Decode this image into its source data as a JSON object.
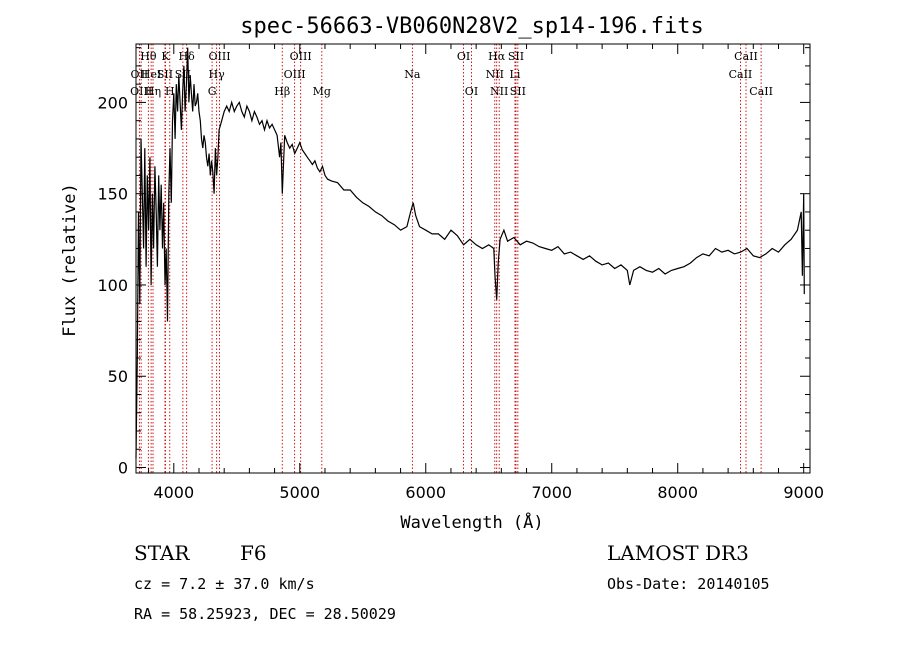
{
  "chart_data": {
    "type": "line",
    "title": "spec-56663-VB060N28V2_sp14-196.fits",
    "xlabel": "Wavelength (Å)",
    "ylabel": "Flux (relative)",
    "xlim": [
      3700,
      9050
    ],
    "ylim": [
      -3,
      232
    ],
    "xticks": [
      4000,
      5000,
      6000,
      7000,
      8000,
      9000
    ],
    "yticks": [
      0,
      50,
      100,
      150,
      200
    ],
    "grid": false,
    "line_color": "#000000",
    "marker_color": "#cc0000",
    "series": [
      {
        "x": [
          3700,
          3710,
          3720,
          3730,
          3740,
          3750,
          3760,
          3770,
          3780,
          3790,
          3800,
          3810,
          3820,
          3830,
          3840,
          3850,
          3860,
          3870,
          3880,
          3890,
          3900,
          3910,
          3920,
          3930,
          3940,
          3950,
          3960,
          3970,
          3980,
          3990,
          4000,
          4010,
          4020,
          4030,
          4040,
          4050,
          4060,
          4070,
          4080,
          4090,
          4100,
          4110,
          4120,
          4130,
          4140,
          4150,
          4160,
          4170,
          4180,
          4190,
          4200,
          4210,
          4220,
          4230,
          4240,
          4250,
          4260,
          4270,
          4280,
          4290,
          4300,
          4310,
          4320,
          4330,
          4340,
          4350,
          4360,
          4380,
          4400,
          4420,
          4440,
          4460,
          4480,
          4500,
          4520,
          4540,
          4560,
          4580,
          4600,
          4620,
          4640,
          4660,
          4680,
          4700,
          4720,
          4740,
          4760,
          4780,
          4800,
          4820,
          4840,
          4850,
          4861,
          4870,
          4880,
          4900,
          4920,
          4940,
          4960,
          4980,
          5000,
          5020,
          5040,
          5060,
          5080,
          5100,
          5120,
          5140,
          5160,
          5180,
          5200,
          5220,
          5250,
          5300,
          5350,
          5400,
          5450,
          5500,
          5550,
          5600,
          5650,
          5700,
          5750,
          5800,
          5850,
          5880,
          5900,
          5920,
          5950,
          6000,
          6050,
          6100,
          6150,
          6200,
          6250,
          6300,
          6350,
          6400,
          6450,
          6500,
          6540,
          6550,
          6563,
          6575,
          6590,
          6620,
          6650,
          6700,
          6750,
          6800,
          6850,
          6900,
          6950,
          7000,
          7050,
          7100,
          7150,
          7200,
          7250,
          7300,
          7350,
          7400,
          7450,
          7500,
          7550,
          7600,
          7620,
          7650,
          7700,
          7750,
          7800,
          7850,
          7900,
          7950,
          8000,
          8050,
          8100,
          8150,
          8200,
          8250,
          8300,
          8350,
          8400,
          8450,
          8500,
          8550,
          8600,
          8650,
          8700,
          8750,
          8800,
          8850,
          8900,
          8950,
          8980,
          8990,
          9000,
          9005
        ],
        "y": [
          5,
          60,
          140,
          90,
          180,
          150,
          120,
          175,
          110,
          160,
          130,
          170,
          100,
          150,
          120,
          165,
          140,
          110,
          160,
          130,
          155,
          120,
          145,
          100,
          120,
          80,
          150,
          175,
          145,
          190,
          205,
          180,
          210,
          195,
          215,
          200,
          185,
          205,
          220,
          195,
          210,
          230,
          200,
          215,
          205,
          195,
          210,
          198,
          200,
          205,
          195,
          190,
          180,
          175,
          182,
          178,
          170,
          165,
          172,
          160,
          168,
          162,
          150,
          175,
          160,
          170,
          185,
          190,
          195,
          198,
          195,
          200,
          195,
          198,
          200,
          195,
          192,
          198,
          195,
          190,
          195,
          192,
          188,
          190,
          185,
          190,
          186,
          188,
          185,
          182,
          170,
          178,
          150,
          165,
          182,
          178,
          175,
          177,
          172,
          175,
          178,
          174,
          172,
          170,
          168,
          166,
          168,
          164,
          162,
          165,
          160,
          158,
          157,
          156,
          152,
          152,
          148,
          145,
          143,
          140,
          138,
          135,
          133,
          130,
          132,
          140,
          145,
          138,
          132,
          130,
          128,
          128,
          125,
          130,
          127,
          122,
          125,
          122,
          120,
          122,
          120,
          105,
          92,
          112,
          125,
          130,
          124,
          126,
          122,
          124,
          123,
          121,
          120,
          119,
          121,
          117,
          118,
          116,
          114,
          116,
          113,
          111,
          112,
          109,
          111,
          108,
          100,
          108,
          110,
          108,
          107,
          109,
          106,
          108,
          109,
          110,
          112,
          115,
          117,
          116,
          120,
          118,
          119,
          117,
          118,
          120,
          116,
          115,
          117,
          120,
          118,
          122,
          125,
          130,
          140,
          105,
          150,
          95
        ]
      }
    ],
    "line_markers": [
      {
        "label": "Hθ",
        "x": 3798,
        "row": 0
      },
      {
        "label": "OII",
        "x": 3727,
        "row": 1
      },
      {
        "label": "OIII",
        "x": 3741,
        "row": 2
      },
      {
        "label": "HeI",
        "x": 3820,
        "row": 1
      },
      {
        "label": "Hη",
        "x": 3835,
        "row": 2
      },
      {
        "label": "K",
        "x": 3934,
        "row": 0
      },
      {
        "label": "SII",
        "x": 3930,
        "row": 1
      },
      {
        "label": "H",
        "x": 3968,
        "row": 2
      },
      {
        "label": "Hδ",
        "x": 4102,
        "row": 0
      },
      {
        "label": "SII",
        "x": 4072,
        "row": 1
      },
      {
        "label": "OIII",
        "x": 4363,
        "row": 0
      },
      {
        "label": "Hγ",
        "x": 4340,
        "row": 1
      },
      {
        "label": "G",
        "x": 4304,
        "row": 2
      },
      {
        "label": "OIII",
        "x": 5007,
        "row": 0
      },
      {
        "label": "OIII",
        "x": 4959,
        "row": 1
      },
      {
        "label": "Hβ",
        "x": 4861,
        "row": 2
      },
      {
        "label": "Mg",
        "x": 5175,
        "row": 2
      },
      {
        "label": "Na",
        "x": 5894,
        "row": 1
      },
      {
        "label": "OI",
        "x": 6300,
        "row": 0
      },
      {
        "label": "OI",
        "x": 6363,
        "row": 2
      },
      {
        "label": "Hα",
        "x": 6563,
        "row": 0
      },
      {
        "label": "SII",
        "x": 6716,
        "row": 0
      },
      {
        "label": "NII",
        "x": 6548,
        "row": 1
      },
      {
        "label": "Li",
        "x": 6708,
        "row": 1
      },
      {
        "label": "NII",
        "x": 6583,
        "row": 2
      },
      {
        "label": "SII",
        "x": 6731,
        "row": 2
      },
      {
        "label": "CaII",
        "x": 8542,
        "row": 0
      },
      {
        "label": "CaII",
        "x": 8498,
        "row": 1
      },
      {
        "label": "CaII",
        "x": 8662,
        "row": 2
      }
    ]
  },
  "info": {
    "class_label": "STAR",
    "subclass": "F6",
    "survey": "LAMOST DR3",
    "cz": "cz = 7.2 ± 37.0 km/s",
    "obs_date": "Obs-Date: 20140105",
    "coords": "RA =  58.25923, DEC =  28.50029"
  }
}
